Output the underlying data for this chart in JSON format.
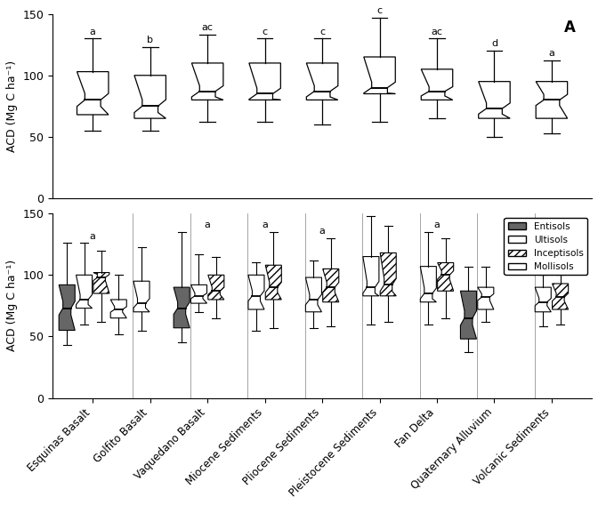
{
  "categories": [
    "Esquinas Basalt",
    "Golfito Basalt",
    "Vaquedano Basalt",
    "Miocene Sediments",
    "Pliocene Sediments",
    "Pleistocene Sediments",
    "Fan Delta",
    "Quaternary Alluvium",
    "Volcanic Sediments"
  ],
  "panel_A_labels": [
    "a",
    "b",
    "ac",
    "c",
    "c",
    "c",
    "ac",
    "d",
    "a"
  ],
  "panel_B_labels": [
    "a",
    "",
    "a",
    "a",
    "a",
    "",
    "a",
    "",
    ""
  ],
  "panel_A_boxes": [
    {
      "whislo": 55,
      "q1": 68,
      "med": 80,
      "q3": 103,
      "whishi": 130,
      "notch": true
    },
    {
      "whislo": 55,
      "q1": 65,
      "med": 75,
      "q3": 100,
      "whishi": 123,
      "notch": true
    },
    {
      "whislo": 62,
      "q1": 80,
      "med": 87,
      "q3": 110,
      "whishi": 133,
      "notch": true
    },
    {
      "whislo": 62,
      "q1": 80,
      "med": 85,
      "q3": 110,
      "whishi": 130,
      "notch": true
    },
    {
      "whislo": 60,
      "q1": 80,
      "med": 87,
      "q3": 110,
      "whishi": 130,
      "notch": true
    },
    {
      "whislo": 62,
      "q1": 85,
      "med": 90,
      "q3": 115,
      "whishi": 147,
      "notch": true
    },
    {
      "whislo": 65,
      "q1": 80,
      "med": 87,
      "q3": 105,
      "whishi": 130,
      "notch": true
    },
    {
      "whislo": 50,
      "q1": 65,
      "med": 73,
      "q3": 95,
      "whishi": 120,
      "notch": true
    },
    {
      "whislo": 53,
      "q1": 65,
      "med": 80,
      "q3": 95,
      "whishi": 112,
      "notch": true
    }
  ],
  "soil_types": [
    "Entisols",
    "Ultisols",
    "Inceptisols",
    "Mollisols"
  ],
  "soil_colors": [
    "#555555",
    "#ffffff",
    "hatch_diagonal",
    "#ffffff"
  ],
  "soil_hatches": [
    null,
    null,
    "////",
    null
  ],
  "panel_B_data": {
    "Esquinas Basalt": {
      "Entisols": {
        "whislo": 43,
        "q1": 55,
        "med": 73,
        "q3": 92,
        "whishi": 126
      },
      "Ultisols": {
        "whislo": 60,
        "q1": 73,
        "med": 80,
        "q3": 100,
        "whishi": 126
      },
      "Inceptisols": {
        "whislo": 62,
        "q1": 85,
        "med": 98,
        "q3": 102,
        "whishi": 120
      },
      "Mollisols": {
        "whislo": 52,
        "q1": 65,
        "med": 72,
        "q3": 80,
        "whishi": 100
      }
    },
    "Golfito Basalt": {
      "Ultisols": {
        "whislo": 55,
        "q1": 70,
        "med": 77,
        "q3": 95,
        "whishi": 123
      },
      "Inceptisols": null,
      "Mollisols": null,
      "Entisols": null
    },
    "Vaquedano Basalt": {
      "Entisols": {
        "whislo": 45,
        "q1": 57,
        "med": 73,
        "q3": 90,
        "whishi": 135
      },
      "Ultisols": {
        "whislo": 70,
        "q1": 77,
        "med": 83,
        "q3": 92,
        "whishi": 117
      },
      "Inceptisols": {
        "whislo": 65,
        "q1": 80,
        "med": 87,
        "q3": 100,
        "whishi": 115
      },
      "Mollisols": null
    },
    "Miocene Sediments": {
      "Entisols": null,
      "Ultisols": {
        "whislo": 55,
        "q1": 72,
        "med": 83,
        "q3": 100,
        "whishi": 110
      },
      "Inceptisols": {
        "whislo": 57,
        "q1": 80,
        "med": 90,
        "q3": 108,
        "whishi": 135
      },
      "Mollisols": null
    },
    "Pliocene Sediments": {
      "Entisols": null,
      "Ultisols": {
        "whislo": 57,
        "q1": 70,
        "med": 80,
        "q3": 98,
        "whishi": 112
      },
      "Inceptisols": {
        "whislo": 58,
        "q1": 78,
        "med": 90,
        "q3": 105,
        "whishi": 130
      },
      "Mollisols": null
    },
    "Pleistocene Sediments": {
      "Entisols": null,
      "Ultisols": {
        "whislo": 60,
        "q1": 83,
        "med": 90,
        "q3": 115,
        "whishi": 148
      },
      "Inceptisols": {
        "whislo": 62,
        "q1": 83,
        "med": 92,
        "q3": 118,
        "whishi": 140
      },
      "Mollisols": null
    },
    "Fan Delta": {
      "Entisols": null,
      "Ultisols": {
        "whislo": 60,
        "q1": 78,
        "med": 85,
        "q3": 107,
        "whishi": 135
      },
      "Inceptisols": {
        "whislo": 65,
        "q1": 87,
        "med": 100,
        "q3": 110,
        "whishi": 130
      },
      "Mollisols": null
    },
    "Quaternary Alluvium": {
      "Entisols": {
        "whislo": 37,
        "q1": 48,
        "med": 65,
        "q3": 87,
        "whishi": 107
      },
      "Ultisols": {
        "whislo": 62,
        "q1": 72,
        "med": 82,
        "q3": 90,
        "whishi": 107
      },
      "Inceptisols": null,
      "Mollisols": null
    },
    "Volcanic Sediments": {
      "Entisols": null,
      "Ultisols": {
        "whislo": 58,
        "q1": 70,
        "med": 78,
        "q3": 90,
        "whishi": 100
      },
      "Inceptisols": {
        "whislo": 60,
        "q1": 72,
        "med": 82,
        "q3": 93,
        "whishi": 100
      },
      "Mollisols": null
    }
  },
  "ylim": [
    0,
    150
  ],
  "yticks": [
    0,
    50,
    100,
    150
  ],
  "ylabel": "ACD (Mg C ha⁻¹)",
  "background_color": "#ffffff",
  "box_color": "#ffffff",
  "box_edge_color": "#000000"
}
